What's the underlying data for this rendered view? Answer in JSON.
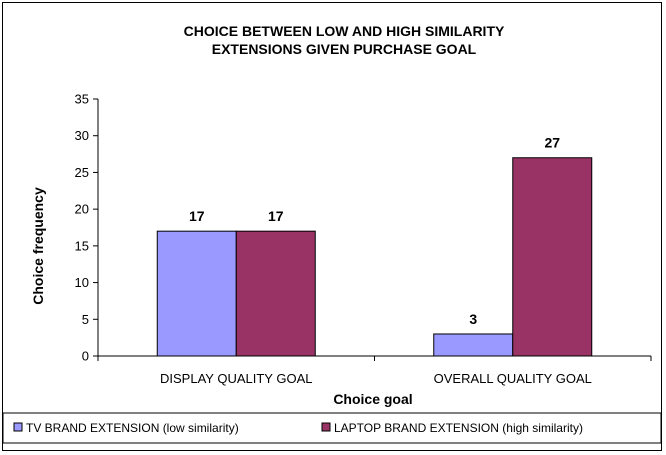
{
  "chart_data": {
    "type": "bar",
    "title_line1": "CHOICE BETWEEN LOW AND HIGH SIMILARITY",
    "title_line2": "EXTENSIONS GIVEN PURCHASE GOAL",
    "xlabel": "Choice goal",
    "ylabel": "Choice frequency",
    "ylim": [
      0,
      35
    ],
    "yticks": [
      0,
      5,
      10,
      15,
      20,
      25,
      30,
      35
    ],
    "categories": [
      "DISPLAY QUALITY GOAL",
      "OVERALL QUALITY GOAL"
    ],
    "series": [
      {
        "name": "TV BRAND EXTENSION (low similarity)",
        "values": [
          17,
          3
        ],
        "color": "#9999ff"
      },
      {
        "name": "LAPTOP BRAND EXTENSION (high similarity)",
        "values": [
          17,
          27
        ],
        "color": "#993366"
      }
    ],
    "grid": false,
    "legend_position": "bottom"
  }
}
